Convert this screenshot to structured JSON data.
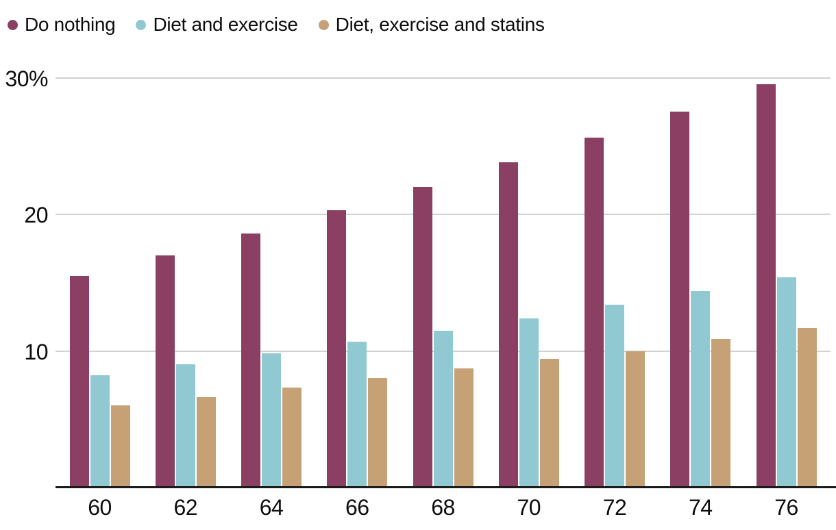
{
  "chart_data": {
    "type": "bar",
    "title": "",
    "xlabel": "",
    "ylabel": "",
    "categories": [
      "60",
      "62",
      "64",
      "66",
      "68",
      "70",
      "72",
      "74",
      "76"
    ],
    "series": [
      {
        "name": "Do nothing",
        "color": "#8B4063",
        "values": [
          15.5,
          17.0,
          18.6,
          20.3,
          22.0,
          23.8,
          25.6,
          27.5,
          29.5
        ]
      },
      {
        "name": "Diet and exercise",
        "color": "#90C9D2",
        "values": [
          8.2,
          9.0,
          9.8,
          10.7,
          11.5,
          12.4,
          13.4,
          14.4,
          15.4
        ]
      },
      {
        "name": "Diet, exercise and statins",
        "color": "#C7A176",
        "values": [
          6.0,
          6.6,
          7.3,
          8.0,
          8.7,
          9.4,
          10.0,
          10.9,
          11.7
        ]
      }
    ],
    "yticks": [
      {
        "value": 30,
        "label": "30%"
      },
      {
        "value": 20,
        "label": "20"
      },
      {
        "value": 10,
        "label": "10"
      }
    ],
    "ylim": [
      0,
      30
    ],
    "grid": "horizontal",
    "legend_position": "top-left",
    "gridline_color": "#d2d2d2",
    "axis_color": "#1a1a1a",
    "text_color": "#0d0d0d",
    "background_color": "#ffffff"
  }
}
